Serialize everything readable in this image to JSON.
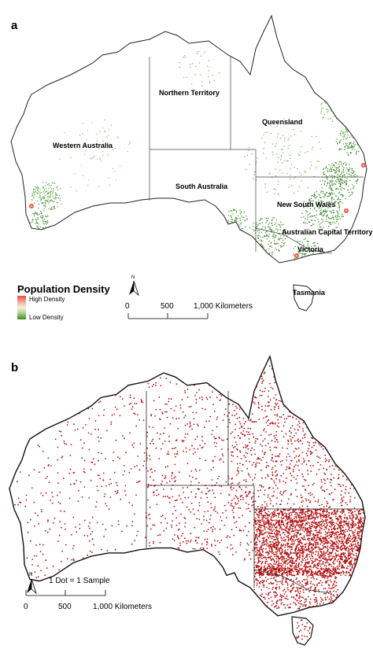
{
  "panel_a": {
    "letter": "a",
    "states": {
      "western_australia": "Western Australia",
      "northern_territory": "Northern Territory",
      "queensland": "Queensland",
      "south_australia": "South Australia",
      "new_south_wales": "New South Wales",
      "act": "Australian Capital Territory",
      "victoria": "Victoria",
      "tasmania": "Tasmania"
    },
    "legend": {
      "title": "Population Density",
      "high": "High Density",
      "low": "Low Density",
      "colors": {
        "high": "#e84d3d",
        "mid": "#f6f0d6",
        "low": "#3f8b2f"
      }
    },
    "scale": {
      "north": "N",
      "ticks": [
        "0",
        "500",
        "1,000 Kilometers"
      ]
    }
  },
  "panel_b": {
    "letter": "b",
    "dot_label": "1 Dot = 1 Sample",
    "dot_color": "#b01010",
    "scale": {
      "north": "N",
      "ticks": [
        "0",
        "500",
        "1,000 Kilometers"
      ]
    }
  }
}
